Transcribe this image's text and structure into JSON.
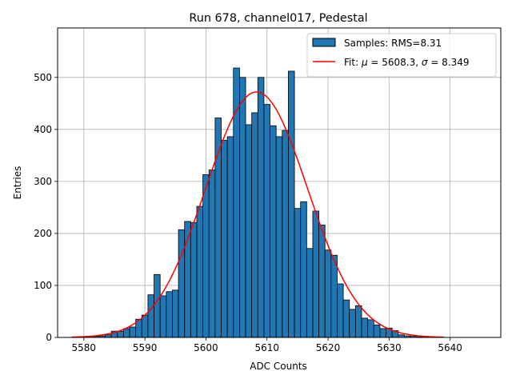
{
  "chart_data": {
    "type": "bar",
    "title": "Run 678, channel017, Pedestal",
    "xlabel": "ADC Counts",
    "ylabel": "Entries",
    "xlim": [
      5575.7,
      5648.3
    ],
    "ylim": [
      0,
      595
    ],
    "xticks": [
      5580,
      5590,
      5600,
      5610,
      5620,
      5630,
      5640
    ],
    "yticks": [
      0,
      100,
      200,
      300,
      400,
      500
    ],
    "grid": true,
    "legend": {
      "placement": "top-right"
    },
    "bar_width": 1,
    "bar_color": "#1f77b4",
    "fit_color": "#ff0000",
    "histogram": {
      "name": "Samples: RMS=8.31",
      "bins": [
        5581,
        5582,
        5583,
        5584,
        5585,
        5586,
        5587,
        5588,
        5589,
        5590,
        5591,
        5592,
        5593,
        5594,
        5595,
        5596,
        5597,
        5598,
        5599,
        5600,
        5601,
        5602,
        5603,
        5604,
        5605,
        5606,
        5607,
        5608,
        5609,
        5610,
        5611,
        5612,
        5613,
        5614,
        5615,
        5616,
        5617,
        5618,
        5619,
        5620,
        5621,
        5622,
        5623,
        5624,
        5625,
        5626,
        5627,
        5628,
        5629,
        5630,
        5631,
        5632,
        5633,
        5634,
        5635,
        5636,
        5637,
        5638,
        5639,
        5640,
        5641,
        5642,
        5643,
        5644,
        5645
      ],
      "values": [
        2,
        2,
        3,
        5,
        12,
        12,
        17,
        20,
        35,
        43,
        82,
        121,
        80,
        88,
        91,
        207,
        223,
        221,
        252,
        313,
        322,
        422,
        379,
        386,
        518,
        500,
        409,
        432,
        500,
        448,
        407,
        386,
        398,
        512,
        248,
        261,
        171,
        243,
        216,
        168,
        158,
        103,
        72,
        54,
        61,
        37,
        34,
        24,
        17,
        18,
        13,
        5,
        3,
        2,
        1,
        1,
        1,
        1,
        0,
        0,
        0,
        0,
        0,
        0,
        0
      ]
    },
    "fit": {
      "name": "Fit: μ = 5608.3, σ = 8.349",
      "name_prefix": "Fit: ",
      "name_mu": "μ",
      "name_mid": " = 5608.3, ",
      "name_sigma": "σ",
      "name_suffix": " = 8.349",
      "type": "line",
      "mu": 5608.3,
      "sigma": 8.349,
      "amplitude": 472,
      "x_range": [
        5578,
        5639
      ]
    }
  }
}
